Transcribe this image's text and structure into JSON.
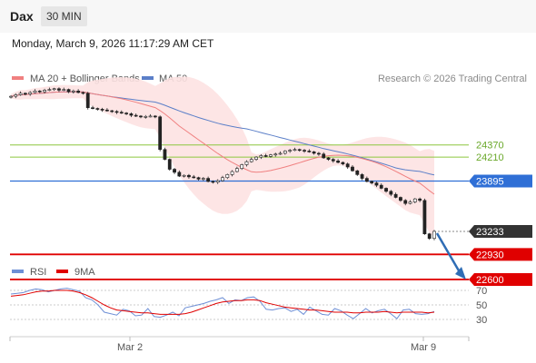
{
  "header": {
    "symbol": "Dax",
    "timeframe": "30 MIN",
    "datetime": "Monday, March 9, 2026 11:17:29 AM CET"
  },
  "legend": {
    "ma20_bb": "MA 20 + Bollinger Bands",
    "ma50": "MA 50",
    "research": "Research © 2026 Trading Central",
    "rsi": "RSI",
    "ma9": "9MA"
  },
  "colors": {
    "ma20": "#f08080",
    "bollinger_fill": "#fde2e2",
    "ma50": "#5b7fc8",
    "support_red": "#e00000",
    "pivot_blue": "#2f6fd6",
    "resistance_green": "#8cc63f",
    "last_price_dark": "#333333",
    "arrow": "#2f6db5",
    "rsi_line": "#6e8fd6",
    "rsi_ma": "#e00000"
  },
  "chart_data": [
    {
      "type": "candlestick",
      "title": "Dax",
      "timeframe": "30 MIN",
      "x_labels": [
        "Mar 2",
        "Mar 9"
      ],
      "y_ticks": [],
      "levels": [
        {
          "value": 24370,
          "label": "24370",
          "kind": "resistance",
          "color": "#8cc63f"
        },
        {
          "value": 24210,
          "label": "24210",
          "kind": "resistance",
          "color": "#8cc63f"
        },
        {
          "value": 23895,
          "label": "23895",
          "kind": "pivot",
          "color": "#2f6fd6"
        },
        {
          "value": 23233,
          "label": "23233",
          "kind": "last",
          "color": "#333333"
        },
        {
          "value": 22930,
          "label": "22930",
          "kind": "support",
          "color": "#e00000"
        },
        {
          "value": 22600,
          "label": "22600",
          "kind": "support",
          "color": "#e00000"
        }
      ],
      "price_series": [
        25010,
        25030,
        25050,
        25040,
        25060,
        25080,
        25070,
        25090,
        25100,
        25110,
        25090,
        25100,
        25070,
        25080,
        25060,
        25050,
        24860,
        24850,
        24840,
        24830,
        24820,
        24810,
        24800,
        24790,
        24780,
        24760,
        24750,
        24740,
        24745,
        24750,
        24740,
        24310,
        24180,
        24050,
        24010,
        23960,
        23970,
        23950,
        23940,
        23920,
        23930,
        23890,
        23880,
        23900,
        23940,
        23980,
        24020,
        24060,
        24110,
        24150,
        24180,
        24210,
        24230,
        24220,
        24240,
        24250,
        24260,
        24290,
        24300,
        24310,
        24300,
        24290,
        24280,
        24260,
        24250,
        24200,
        24180,
        24160,
        24140,
        24120,
        24080,
        24030,
        23980,
        23930,
        23890,
        23870,
        23840,
        23800,
        23760,
        23720,
        23680,
        23640,
        23600,
        23620,
        23660,
        23640,
        23200,
        23140,
        23233
      ],
      "series": [
        {
          "name": "MA 20 + Bollinger Bands"
        },
        {
          "name": "MA 50"
        }
      ],
      "forecast": {
        "from": 23233,
        "to": 22600,
        "direction": "down"
      }
    },
    {
      "type": "line",
      "title": "",
      "y_ticks": [
        70,
        50,
        30
      ],
      "ylim": [
        10,
        90
      ],
      "series": [
        {
          "name": "RSI",
          "values": [
            65,
            66,
            67,
            70,
            72,
            71,
            68,
            70,
            72,
            73,
            71,
            69,
            60,
            57,
            50,
            40,
            38,
            36,
            44,
            42,
            35,
            36,
            45,
            34,
            33,
            36,
            40,
            35,
            46,
            48,
            50,
            52,
            55,
            57,
            60,
            52,
            57,
            56,
            60,
            61,
            55,
            44,
            43,
            45,
            46,
            41,
            44,
            37,
            47,
            42,
            37,
            36,
            45,
            42,
            36,
            31,
            38,
            45,
            39,
            42,
            44,
            38,
            31,
            43,
            44,
            38,
            37,
            38,
            41
          ]
        },
        {
          "name": "9MA",
          "values": [
            62,
            63,
            64,
            66,
            68,
            69,
            69,
            70,
            70,
            70,
            69,
            67,
            64,
            60,
            55,
            50,
            46,
            43,
            42,
            41,
            40,
            39,
            39,
            38,
            37,
            37,
            37,
            37,
            38,
            40,
            43,
            46,
            49,
            52,
            54,
            55,
            56,
            56,
            57,
            57,
            56,
            53,
            51,
            49,
            47,
            46,
            45,
            44,
            43,
            43,
            42,
            41,
            40,
            40,
            40,
            39,
            39,
            40,
            40,
            40,
            41,
            40,
            39,
            40,
            40,
            40,
            40,
            39,
            40
          ]
        }
      ]
    }
  ]
}
